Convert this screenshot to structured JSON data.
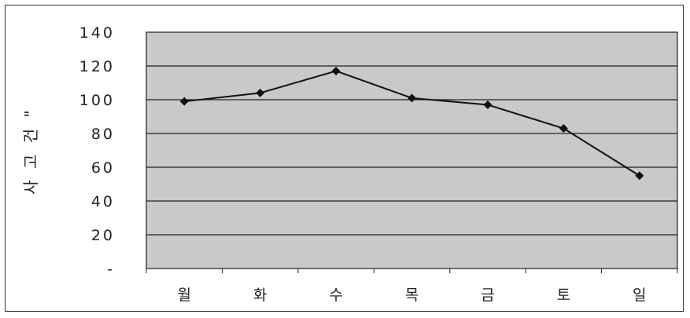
{
  "chart_data": {
    "type": "line",
    "categories": [
      "월",
      "화",
      "수",
      "목",
      "금",
      "토",
      "일"
    ],
    "series": [
      {
        "values": [
          99,
          104,
          117,
          101,
          97,
          83,
          55
        ]
      }
    ],
    "ylabel": "사 고 건 \"",
    "xlabel": "",
    "ylim": [
      0,
      140
    ],
    "yticks": [
      0,
      20,
      40,
      60,
      80,
      100,
      120,
      140
    ],
    "ytick_labels": [
      "-",
      "20",
      "40",
      "60",
      "80",
      "100",
      "120",
      "140"
    ],
    "grid": true,
    "legend": "none",
    "colors": {
      "plot_bg": "#c9c9c9",
      "line": "#111111",
      "grid": "#222222"
    }
  }
}
